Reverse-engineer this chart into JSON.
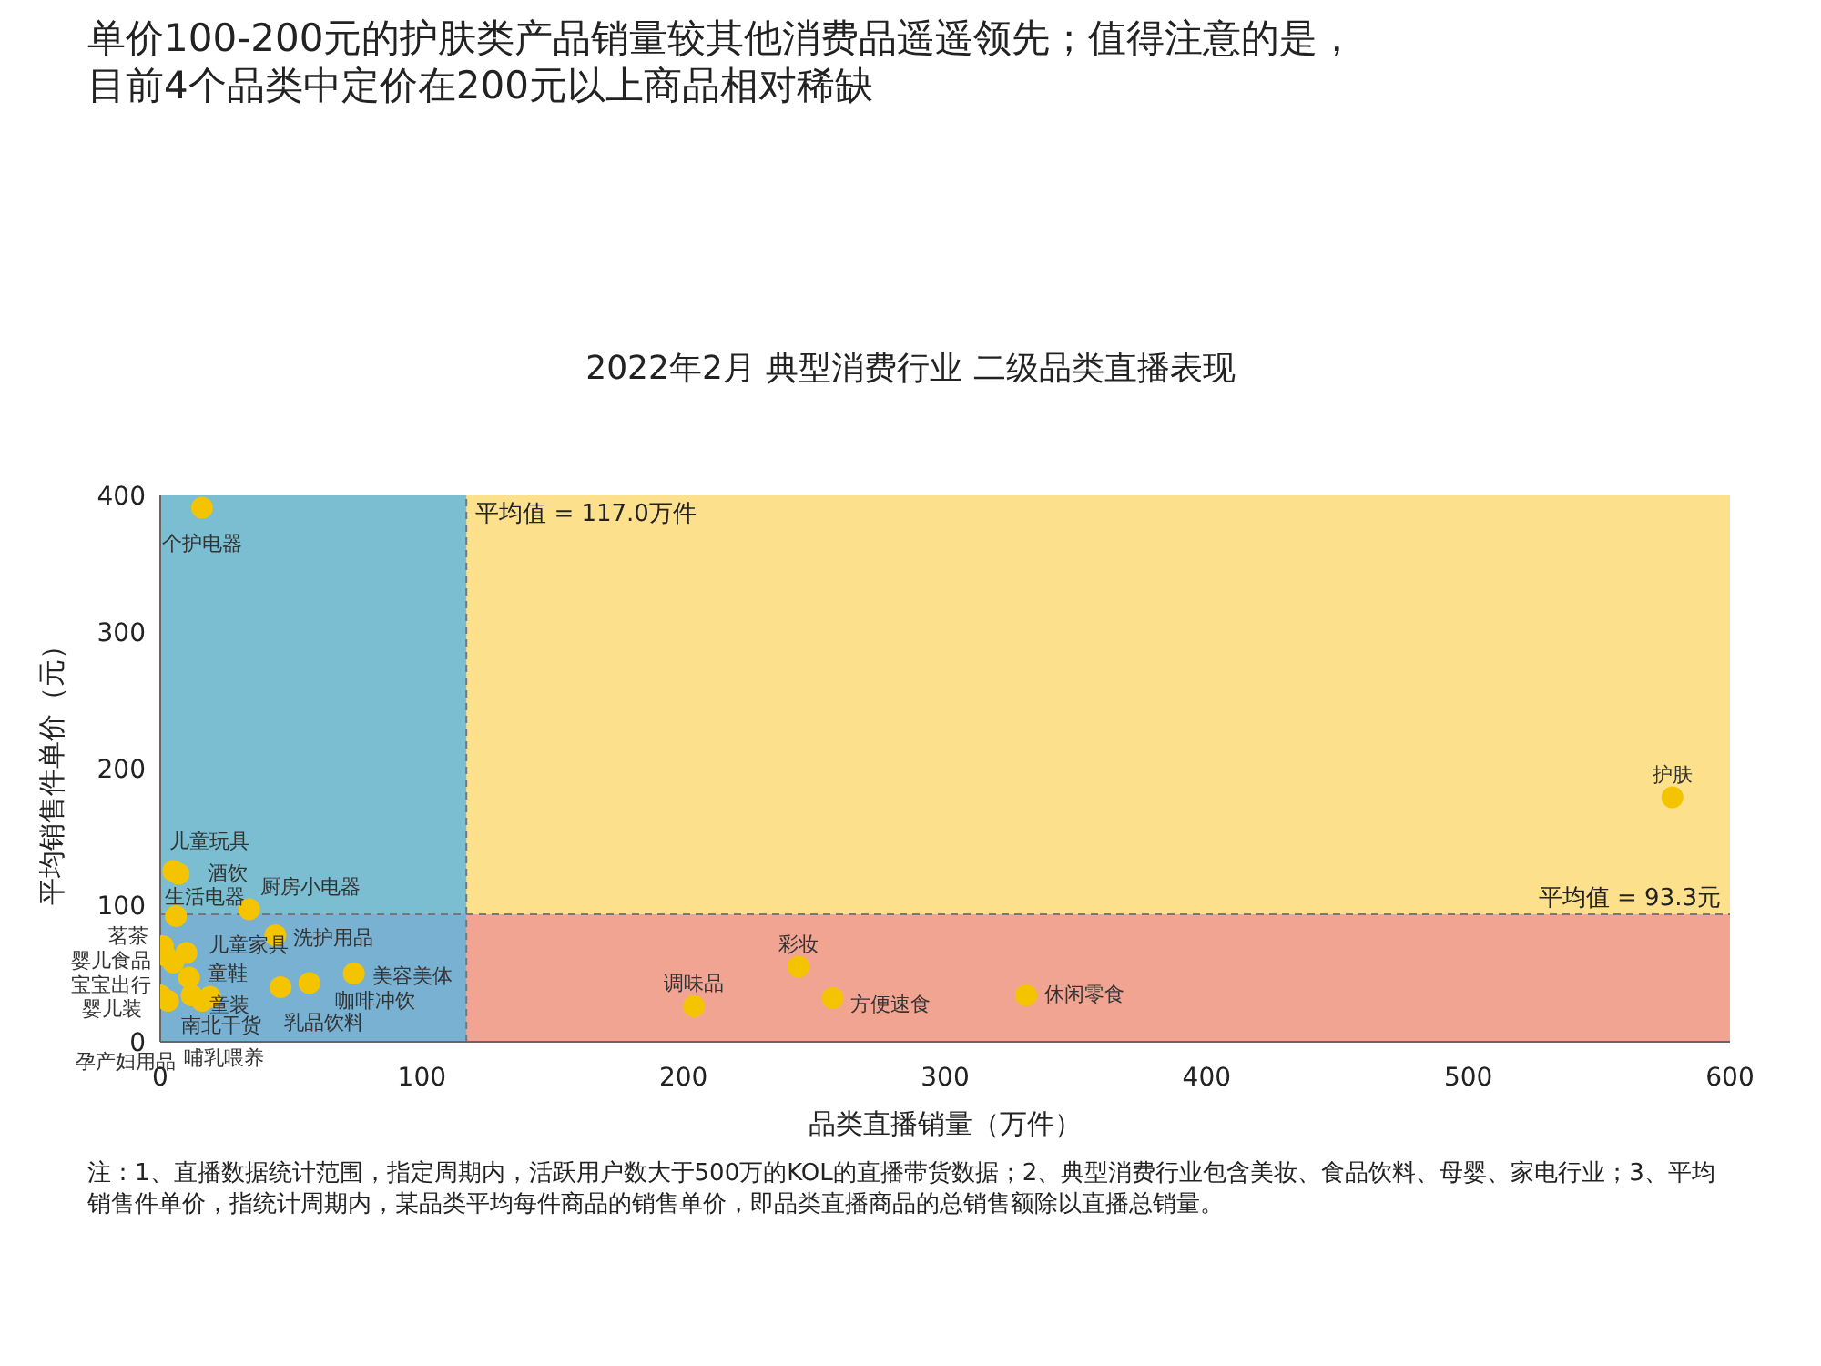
{
  "chart_data": {
    "type": "scatter",
    "title": "单价100-200元的护肤类产品销量较其他消费品遥遥领先；值得注意的是，目前4个品类中定价在200元以上商品相对稀缺",
    "subtitle": "2022年2月 典型消费行业 二级品类直播表现",
    "xlabel": "品类直播销量（万件）",
    "ylabel": "平均销售件单价（元）",
    "x": [
      16,
      578,
      204,
      244,
      257,
      331,
      5,
      7,
      6,
      34,
      10,
      44,
      1,
      2,
      5,
      11,
      12,
      0,
      3,
      16,
      46,
      57,
      74,
      19
    ],
    "values": [
      391,
      179,
      26,
      55,
      32,
      34,
      125,
      123,
      92,
      97,
      65,
      78,
      70,
      63,
      58,
      47,
      34,
      34,
      30,
      30,
      40,
      43,
      50,
      33
    ],
    "value_labels": [
      "个护电器",
      "护肤",
      "调味品",
      "彩妆",
      "方便速食",
      "休闲零食",
      "儿童玩具",
      "酒饮",
      "生活电器",
      "厨房小电器",
      "儿童家具",
      "洗护用品",
      "茗茶",
      "婴儿食品",
      "宝宝出行",
      "童鞋",
      "童装",
      "婴儿装",
      "孕产妇用品",
      "哺乳喂养",
      "乳品饮料",
      "咖啡冲饮",
      "美容美体",
      "南北干货"
    ],
    "color": "#f5c400",
    "marker": "circle",
    "xlim": [
      0,
      600
    ],
    "xticks": [
      0,
      100,
      200,
      300,
      400,
      500,
      600
    ],
    "ylim": [
      0,
      400
    ],
    "yticks": [
      0,
      100,
      200,
      300,
      400
    ],
    "grid": false,
    "legend": false,
    "ref_lines": [
      {
        "axis": "x",
        "value": 117.0,
        "label": "平均值 = 117.0万件",
        "color": "#777777",
        "line_style": "dashed"
      },
      {
        "axis": "y",
        "value": 93.3,
        "label": "平均值 = 93.3元",
        "color": "#777777",
        "line_style": "dashed"
      }
    ],
    "bands": [
      {
        "axis": "y",
        "from": 93.3,
        "to": 400,
        "color": "#fde08c"
      },
      {
        "axis": "y",
        "from": 0,
        "to": 93.3,
        "color": "#f2a493"
      },
      {
        "axis": "x",
        "from": 0,
        "to": 117.0,
        "color": "#5ab4e2"
      }
    ],
    "annotations": [
      "注：1、直播数据统计范围，指定周期内，活跃用户数大于500万的KOL的直播带货数据；2、典型消费行业包含美妆、食品饮料、母婴、家电行业；3、平均销售件单价，指统计周期内，某品类平均每件商品的销售单价，即品类直播商品的总销售额除以直播总销量。"
    ]
  }
}
